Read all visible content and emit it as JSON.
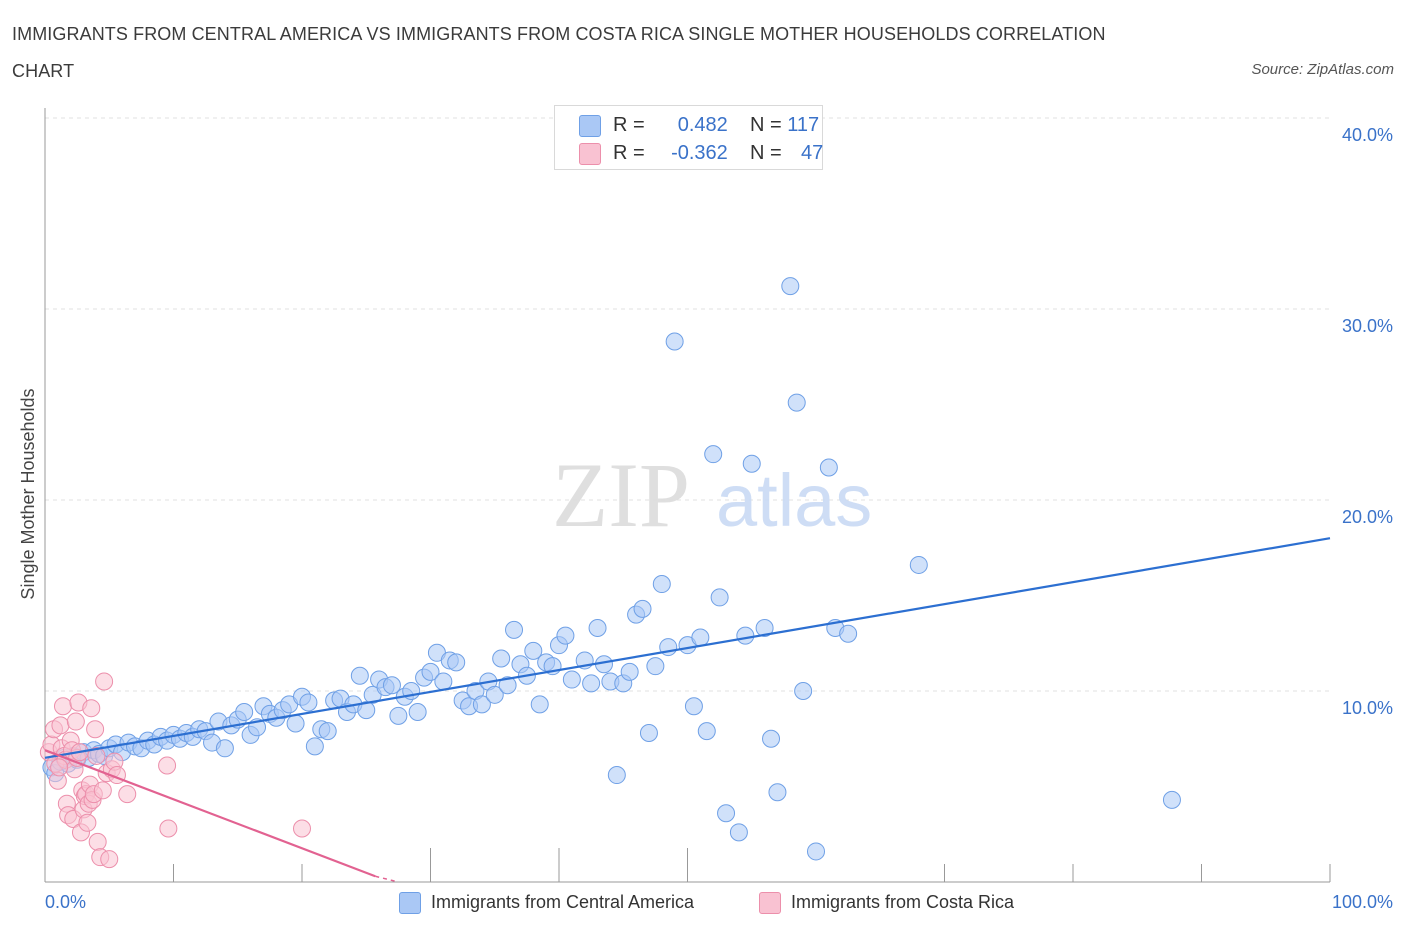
{
  "title": "IMMIGRANTS FROM CENTRAL AMERICA VS IMMIGRANTS FROM COSTA RICA SINGLE MOTHER HOUSEHOLDS CORRELATION CHART",
  "source": "Source: ZipAtlas.com",
  "watermark": {
    "zip": "ZIP",
    "atlas": "atlas"
  },
  "legend": {
    "rows": [
      {
        "r_label": "R =",
        "r_value": "0.482",
        "n_label": "N =",
        "n_value": "117",
        "color": "#aac8f5",
        "border": "#6fa0e6"
      },
      {
        "r_label": "R =",
        "r_value": "-0.362",
        "n_label": "N =",
        "n_value": "47",
        "color": "#f9c2d2",
        "border": "#ec8fab"
      }
    ]
  },
  "chart_data": {
    "type": "scatter",
    "title": "IMMIGRANTS FROM CENTRAL AMERICA VS IMMIGRANTS FROM COSTA RICA SINGLE MOTHER HOUSEHOLDS CORRELATION CHART",
    "xlabel": "",
    "ylabel": "Single Mother Households",
    "xlim": [
      0,
      100
    ],
    "ylim": [
      0,
      40
    ],
    "x_tick_labels": [
      "0.0%",
      "100.0%"
    ],
    "y_tick_labels": [
      "10.0%",
      "20.0%",
      "30.0%",
      "40.0%"
    ],
    "y_ticks": [
      10,
      20,
      30,
      40
    ],
    "grid": true,
    "series": [
      {
        "name": "Immigrants from Central America",
        "color": "#aac8f5",
        "edge": "#6fa0e6",
        "trend_color": "#2c6fd1",
        "trend": {
          "x": [
            0,
            100
          ],
          "y": [
            6.5,
            18.0
          ]
        },
        "points": [
          [
            0.5,
            6.0
          ],
          [
            0.8,
            5.7
          ],
          [
            1.2,
            6.3
          ],
          [
            1.5,
            6.5
          ],
          [
            1.8,
            6.2
          ],
          [
            2.2,
            6.6
          ],
          [
            2.5,
            6.4
          ],
          [
            3.0,
            6.8
          ],
          [
            3.4,
            6.5
          ],
          [
            3.8,
            6.9
          ],
          [
            4.2,
            6.7
          ],
          [
            4.6,
            6.6
          ],
          [
            5.0,
            7.0
          ],
          [
            5.5,
            7.2
          ],
          [
            6.0,
            6.8
          ],
          [
            6.5,
            7.3
          ],
          [
            7.0,
            7.1
          ],
          [
            7.5,
            7.0
          ],
          [
            8.0,
            7.4
          ],
          [
            8.5,
            7.2
          ],
          [
            9.0,
            7.6
          ],
          [
            9.5,
            7.4
          ],
          [
            10.0,
            7.7
          ],
          [
            10.5,
            7.5
          ],
          [
            11.0,
            7.8
          ],
          [
            11.5,
            7.6
          ],
          [
            12.0,
            8.0
          ],
          [
            12.5,
            7.9
          ],
          [
            13.0,
            7.3
          ],
          [
            13.5,
            8.4
          ],
          [
            14.0,
            7.0
          ],
          [
            14.5,
            8.2
          ],
          [
            15.0,
            8.5
          ],
          [
            15.5,
            8.9
          ],
          [
            16.0,
            7.7
          ],
          [
            16.5,
            8.1
          ],
          [
            17.0,
            9.2
          ],
          [
            17.5,
            8.8
          ],
          [
            18.0,
            8.6
          ],
          [
            18.5,
            9.0
          ],
          [
            19.0,
            9.3
          ],
          [
            19.5,
            8.3
          ],
          [
            20.0,
            9.7
          ],
          [
            20.5,
            9.4
          ],
          [
            21.0,
            7.1
          ],
          [
            21.5,
            8.0
          ],
          [
            22.0,
            7.9
          ],
          [
            22.5,
            9.5
          ],
          [
            23.0,
            9.6
          ],
          [
            23.5,
            8.9
          ],
          [
            24.0,
            9.3
          ],
          [
            24.5,
            10.8
          ],
          [
            25.0,
            9.0
          ],
          [
            25.5,
            9.8
          ],
          [
            26.0,
            10.6
          ],
          [
            26.5,
            10.2
          ],
          [
            27.0,
            10.3
          ],
          [
            27.5,
            8.7
          ],
          [
            28.0,
            9.7
          ],
          [
            28.5,
            10.0
          ],
          [
            29.0,
            8.9
          ],
          [
            29.5,
            10.7
          ],
          [
            30.0,
            11.0
          ],
          [
            30.5,
            12.0
          ],
          [
            31.0,
            10.5
          ],
          [
            31.5,
            11.6
          ],
          [
            32.0,
            11.5
          ],
          [
            32.5,
            9.5
          ],
          [
            33.0,
            9.2
          ],
          [
            33.5,
            10.0
          ],
          [
            34.0,
            9.3
          ],
          [
            34.5,
            10.5
          ],
          [
            35.0,
            9.8
          ],
          [
            35.5,
            11.7
          ],
          [
            36.0,
            10.3
          ],
          [
            36.5,
            13.2
          ],
          [
            37.0,
            11.4
          ],
          [
            37.5,
            10.8
          ],
          [
            38.0,
            12.1
          ],
          [
            38.5,
            9.3
          ],
          [
            39.0,
            11.5
          ],
          [
            39.5,
            11.3
          ],
          [
            40.0,
            12.4
          ],
          [
            40.5,
            12.9
          ],
          [
            41.0,
            10.6
          ],
          [
            42.0,
            11.6
          ],
          [
            42.5,
            10.4
          ],
          [
            43.0,
            13.3
          ],
          [
            43.5,
            11.4
          ],
          [
            44.0,
            10.5
          ],
          [
            44.5,
            5.6
          ],
          [
            45.0,
            10.4
          ],
          [
            45.5,
            11.0
          ],
          [
            46.0,
            14.0
          ],
          [
            46.5,
            14.3
          ],
          [
            47.0,
            7.8
          ],
          [
            47.5,
            11.3
          ],
          [
            48.0,
            15.6
          ],
          [
            48.5,
            12.3
          ],
          [
            49.0,
            28.3
          ],
          [
            50.0,
            12.4
          ],
          [
            50.5,
            9.2
          ],
          [
            51.0,
            12.8
          ],
          [
            51.5,
            7.9
          ],
          [
            52.0,
            22.4
          ],
          [
            52.5,
            14.9
          ],
          [
            53.0,
            3.6
          ],
          [
            54.0,
            2.6
          ],
          [
            54.5,
            12.9
          ],
          [
            55.0,
            21.9
          ],
          [
            56.0,
            13.3
          ],
          [
            56.5,
            7.5
          ],
          [
            57.0,
            4.7
          ],
          [
            58.0,
            31.2
          ],
          [
            58.5,
            25.1
          ],
          [
            59.0,
            10.0
          ],
          [
            60.0,
            1.6
          ],
          [
            61.0,
            21.7
          ],
          [
            61.5,
            13.3
          ],
          [
            62.5,
            13.0
          ],
          [
            68.0,
            16.6
          ],
          [
            87.7,
            4.3
          ]
        ]
      },
      {
        "name": "Immigrants from Costa Rica",
        "color": "#f9c2d2",
        "edge": "#ec8fab",
        "trend_color": "#e26291",
        "trend": {
          "x": [
            0,
            25.7
          ],
          "y": [
            6.9,
            0.3
          ]
        },
        "trend_dashed_to": {
          "x": 27.5,
          "y": 0.0
        },
        "points": [
          [
            0.3,
            6.8
          ],
          [
            0.5,
            7.2
          ],
          [
            0.7,
            8.0
          ],
          [
            0.8,
            6.2
          ],
          [
            1.0,
            5.3
          ],
          [
            1.2,
            8.2
          ],
          [
            1.3,
            7.0
          ],
          [
            1.4,
            9.2
          ],
          [
            1.5,
            6.6
          ],
          [
            1.6,
            6.4
          ],
          [
            1.7,
            4.1
          ],
          [
            1.8,
            3.5
          ],
          [
            2.0,
            7.4
          ],
          [
            2.1,
            6.9
          ],
          [
            2.2,
            3.3
          ],
          [
            2.3,
            5.9
          ],
          [
            2.4,
            8.4
          ],
          [
            2.5,
            6.5
          ],
          [
            2.6,
            9.4
          ],
          [
            2.7,
            6.8
          ],
          [
            2.8,
            2.6
          ],
          [
            2.9,
            4.8
          ],
          [
            3.0,
            3.8
          ],
          [
            3.1,
            4.5
          ],
          [
            3.2,
            4.6
          ],
          [
            3.3,
            3.1
          ],
          [
            3.4,
            4.1
          ],
          [
            3.5,
            5.1
          ],
          [
            3.6,
            9.1
          ],
          [
            3.7,
            4.3
          ],
          [
            3.8,
            4.6
          ],
          [
            3.9,
            8.0
          ],
          [
            4.0,
            6.6
          ],
          [
            4.1,
            2.1
          ],
          [
            4.3,
            1.3
          ],
          [
            4.5,
            4.8
          ],
          [
            4.6,
            10.5
          ],
          [
            4.8,
            5.7
          ],
          [
            5.0,
            1.2
          ],
          [
            5.2,
            5.9
          ],
          [
            5.4,
            6.3
          ],
          [
            5.6,
            5.6
          ],
          [
            6.4,
            4.6
          ],
          [
            9.5,
            6.1
          ],
          [
            9.6,
            2.8
          ],
          [
            20.0,
            2.8
          ],
          [
            1.1,
            6.0
          ]
        ]
      }
    ]
  },
  "bottom_legend": [
    {
      "label": "Immigrants from Central America",
      "color": "#aac8f5",
      "border": "#6fa0e6"
    },
    {
      "label": "Immigrants from Costa Rica",
      "color": "#f9c2d2",
      "border": "#ec8fab"
    }
  ]
}
